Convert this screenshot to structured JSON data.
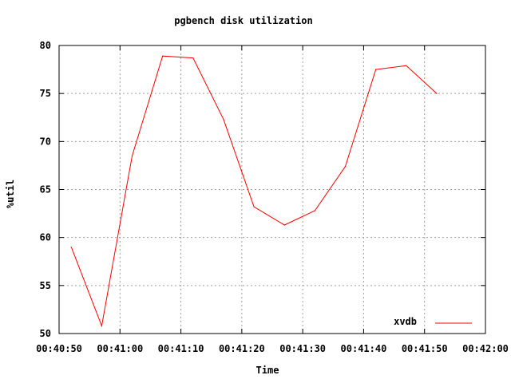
{
  "chart_data": {
    "type": "line",
    "title": "pgbench disk utilization",
    "xlabel": "Time",
    "ylabel": "%util",
    "x_ticks": [
      "00:40:50",
      "00:41:00",
      "00:41:10",
      "00:41:20",
      "00:41:30",
      "00:41:40",
      "00:41:50",
      "00:42:00"
    ],
    "y_ticks": [
      50,
      55,
      60,
      65,
      70,
      75,
      80
    ],
    "xlim": [
      "00:40:50",
      "00:42:00"
    ],
    "ylim": [
      50,
      80
    ],
    "grid": true,
    "legend_position": "bottom-right",
    "series": [
      {
        "name": "xvdb",
        "color": "#ff0000",
        "points": [
          {
            "x": "00:40:52",
            "y": 59.0
          },
          {
            "x": "00:40:57",
            "y": 50.8
          },
          {
            "x": "00:41:02",
            "y": 68.5
          },
          {
            "x": "00:41:07",
            "y": 78.9
          },
          {
            "x": "00:41:12",
            "y": 78.7
          },
          {
            "x": "00:41:17",
            "y": 72.3
          },
          {
            "x": "00:41:22",
            "y": 63.2
          },
          {
            "x": "00:41:27",
            "y": 61.3
          },
          {
            "x": "00:41:32",
            "y": 62.8
          },
          {
            "x": "00:41:37",
            "y": 67.4
          },
          {
            "x": "00:41:42",
            "y": 77.5
          },
          {
            "x": "00:41:47",
            "y": 77.9
          },
          {
            "x": "00:41:52",
            "y": 75.0
          }
        ]
      }
    ]
  }
}
